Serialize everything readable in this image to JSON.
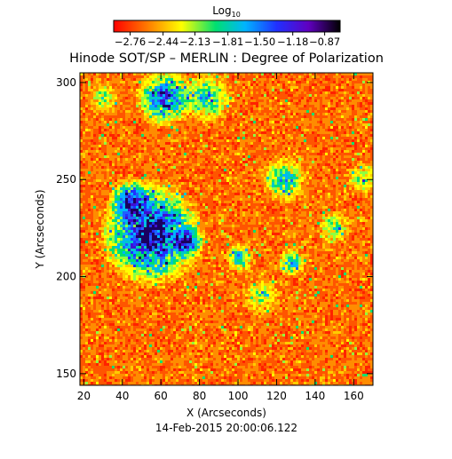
{
  "chart_data": {
    "type": "heatmap",
    "title": "Hinode SOT/SP – MERLIN : Degree of Polarization",
    "xlabel": "X (Arcseconds)",
    "ylabel": "Y (Arcseconds)",
    "xlim": [
      18,
      170
    ],
    "ylim": [
      144,
      305
    ],
    "x_ticks": [
      20,
      40,
      60,
      80,
      100,
      120,
      140,
      160
    ],
    "y_ticks": [
      150,
      200,
      250,
      300
    ],
    "footer": "14-Feb-2015 20:00:06.122",
    "colorbar": {
      "label": "Log",
      "label_subscript": "10",
      "range": [
        -2.92,
        -0.72
      ],
      "ticks": [
        "−2.76",
        "−2.44",
        "−2.13",
        "−1.81",
        "−1.50",
        "−1.18",
        "−0.87"
      ],
      "colormap": "rainbow"
    },
    "regions": [
      {
        "kind": "strong",
        "x": [
          35,
          74
        ],
        "y": [
          206,
          235
        ]
      },
      {
        "kind": "strong",
        "x": [
          50,
          66
        ],
        "y": [
          285,
          305
        ]
      },
      {
        "kind": "moderate",
        "x": [
          75,
          92
        ],
        "y": [
          285,
          305
        ]
      },
      {
        "kind": "moderate",
        "x": [
          118,
          132
        ],
        "y": [
          240,
          262
        ]
      }
    ]
  }
}
